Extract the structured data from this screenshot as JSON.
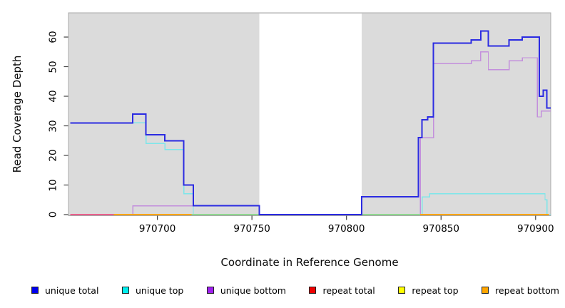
{
  "chart_data": {
    "type": "line",
    "subtype": "step",
    "title": "",
    "xlabel": "Coordinate in Reference Genome",
    "ylabel": "Read Coverage Depth",
    "xlim": [
      970653,
      970908
    ],
    "ylim": [
      0,
      68
    ],
    "x_ticks": [
      970700,
      970750,
      970800,
      970850,
      970900
    ],
    "y_ticks": [
      0,
      10,
      20,
      30,
      40,
      50,
      60
    ],
    "grid": false,
    "legend_position": "bottom",
    "panel_background": "#DBDBDB",
    "panel_border": "#A8A8A8",
    "no_data_region": {
      "x0": 970754,
      "x1": 970808,
      "color": "#FFFFFF"
    },
    "baseline_overlap_segments": [
      {
        "x0": 970654,
        "x1": 970677,
        "color": "#E8608C"
      },
      {
        "x0": 970677,
        "x1": 970718,
        "color": "#FFA500"
      },
      {
        "x0": 970718,
        "x1": 970754,
        "color": "#90D690"
      },
      {
        "x0": 970808,
        "x1": 970839,
        "color": "#90D690"
      },
      {
        "x0": 970839,
        "x1": 970907,
        "color": "#FFA500"
      }
    ],
    "series": [
      {
        "name": "unique total",
        "color": "#2B2BE2",
        "legend_color": "#0000EE",
        "line_width": 2,
        "steps": [
          [
            970654,
            31
          ],
          [
            970687,
            34
          ],
          [
            970694,
            27
          ],
          [
            970704,
            25
          ],
          [
            970714,
            10
          ],
          [
            970719,
            3
          ],
          [
            970754,
            0
          ],
          [
            970808,
            6
          ],
          [
            970838,
            26
          ],
          [
            970840,
            32
          ],
          [
            970843,
            33
          ],
          [
            970846,
            58
          ],
          [
            970866,
            59
          ],
          [
            970871,
            62
          ],
          [
            970875,
            57
          ],
          [
            970886,
            59
          ],
          [
            970893,
            60
          ],
          [
            970902,
            40
          ],
          [
            970904,
            42
          ],
          [
            970906,
            36
          ]
        ],
        "x_end": 970908
      },
      {
        "name": "unique top",
        "color": "#7DE6EA",
        "legend_color": "#00EEEE",
        "line_width": 1.4,
        "steps": [
          [
            970654,
            31
          ],
          [
            970694,
            24
          ],
          [
            970704,
            22
          ],
          [
            970714,
            7
          ],
          [
            970719,
            0
          ],
          [
            970840,
            6
          ],
          [
            970844,
            7
          ],
          [
            970905,
            5
          ],
          [
            970906,
            0
          ]
        ],
        "x_end": 970908
      },
      {
        "name": "unique bottom",
        "color": "#C38FDC",
        "legend_color": "#A020F0",
        "line_width": 1.4,
        "steps": [
          [
            970654,
            0
          ],
          [
            970687,
            3
          ],
          [
            970754,
            0
          ],
          [
            970839,
            26
          ],
          [
            970846,
            51
          ],
          [
            970866,
            52
          ],
          [
            970871,
            55
          ],
          [
            970875,
            49
          ],
          [
            970886,
            52
          ],
          [
            970893,
            53
          ],
          [
            970901,
            33
          ],
          [
            970903,
            35
          ]
        ],
        "x_end": 970908
      },
      {
        "name": "repeat total",
        "color": "#EE2222",
        "legend_color": "#EE0000",
        "line_width": 1.4,
        "steps": [
          [
            970654,
            0
          ]
        ],
        "x_end": 970907
      },
      {
        "name": "repeat top",
        "color": "#EEEE00",
        "legend_color": "#FFFF00",
        "line_width": 1.4,
        "steps": [
          [
            970654,
            0
          ]
        ],
        "x_end": 970907
      },
      {
        "name": "repeat bottom",
        "color": "#FFA500",
        "legend_color": "#FFA500",
        "line_width": 1.4,
        "steps": [
          [
            970654,
            0
          ]
        ],
        "x_end": 970907
      }
    ]
  }
}
